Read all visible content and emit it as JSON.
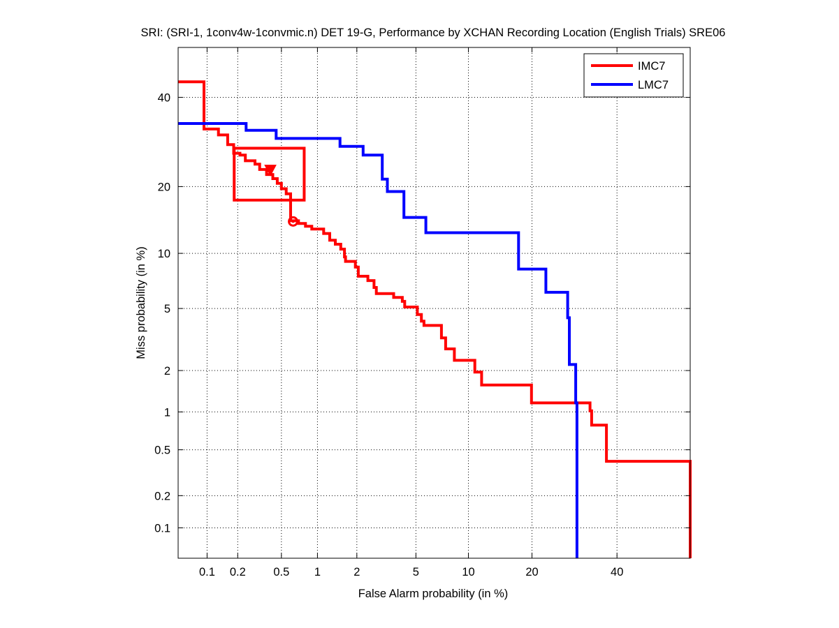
{
  "chart_data": {
    "type": "line",
    "title": "SRI: (SRI-1, 1conv4w-1convmic.n) DET 19-G,  Performance by XCHAN Recording Location (English Trials) SRE06",
    "xlabel": "False Alarm probability (in %)",
    "ylabel": "Miss probability (in %)",
    "scale": "normal-deviate (probit) on both axes",
    "xlim": [
      0.05,
      60
    ],
    "ylim": [
      0.05,
      53
    ],
    "x_ticks": [
      {
        "value": 0.1,
        "label": "0.1"
      },
      {
        "value": 0.2,
        "label": "0.2"
      },
      {
        "value": 0.5,
        "label": "0.5"
      },
      {
        "value": 1,
        "label": "1"
      },
      {
        "value": 2,
        "label": "2"
      },
      {
        "value": 5,
        "label": "5"
      },
      {
        "value": 10,
        "label": "10"
      },
      {
        "value": 20,
        "label": "20"
      },
      {
        "value": 40,
        "label": "40"
      }
    ],
    "y_ticks": [
      {
        "value": 0.1,
        "label": "0.1"
      },
      {
        "value": 0.2,
        "label": "0.2"
      },
      {
        "value": 0.5,
        "label": "0.5"
      },
      {
        "value": 1,
        "label": "1"
      },
      {
        "value": 2,
        "label": "2"
      },
      {
        "value": 5,
        "label": "5"
      },
      {
        "value": 10,
        "label": "10"
      },
      {
        "value": 20,
        "label": "20"
      },
      {
        "value": 40,
        "label": "40"
      }
    ],
    "grid": "dotted",
    "legend": "top-right",
    "series": [
      {
        "name": "IMC7",
        "color": "#ff0000",
        "points": [
          [
            0.05,
            44
          ],
          [
            0.093,
            44
          ],
          [
            0.093,
            32.2
          ],
          [
            0.13,
            32.2
          ],
          [
            0.13,
            30.8
          ],
          [
            0.16,
            30.8
          ],
          [
            0.16,
            28.6
          ],
          [
            0.183,
            28.6
          ],
          [
            0.183,
            26.7
          ],
          [
            0.21,
            26.7
          ],
          [
            0.21,
            26.3
          ],
          [
            0.236,
            26.3
          ],
          [
            0.236,
            25.1
          ],
          [
            0.29,
            25.1
          ],
          [
            0.29,
            24.4
          ],
          [
            0.32,
            24.4
          ],
          [
            0.32,
            23.3
          ],
          [
            0.37,
            23.3
          ],
          [
            0.37,
            22.3
          ],
          [
            0.42,
            22.3
          ],
          [
            0.42,
            21.5
          ],
          [
            0.46,
            21.5
          ],
          [
            0.46,
            20.6
          ],
          [
            0.5,
            20.6
          ],
          [
            0.5,
            19.6
          ],
          [
            0.55,
            19.6
          ],
          [
            0.55,
            18.7
          ],
          [
            0.6,
            18.7
          ],
          [
            0.6,
            14.3
          ],
          [
            0.7,
            14.3
          ],
          [
            0.7,
            13.9
          ],
          [
            0.8,
            13.9
          ],
          [
            0.8,
            13.5
          ],
          [
            0.9,
            13.5
          ],
          [
            0.9,
            13.1
          ],
          [
            1.12,
            13.1
          ],
          [
            1.12,
            12.5
          ],
          [
            1.25,
            12.5
          ],
          [
            1.25,
            11.6
          ],
          [
            1.38,
            11.6
          ],
          [
            1.38,
            11.1
          ],
          [
            1.52,
            11.1
          ],
          [
            1.52,
            10.5
          ],
          [
            1.62,
            10.5
          ],
          [
            1.62,
            9.6
          ],
          [
            1.65,
            9.6
          ],
          [
            1.65,
            9.1
          ],
          [
            1.95,
            9.1
          ],
          [
            1.95,
            8.5
          ],
          [
            2.05,
            8.5
          ],
          [
            2.05,
            7.6
          ],
          [
            2.4,
            7.6
          ],
          [
            2.4,
            7.2
          ],
          [
            2.65,
            7.2
          ],
          [
            2.65,
            6.6
          ],
          [
            2.75,
            6.6
          ],
          [
            2.75,
            6.1
          ],
          [
            3.6,
            6.1
          ],
          [
            3.6,
            5.8
          ],
          [
            4.1,
            5.8
          ],
          [
            4.1,
            5.5
          ],
          [
            4.25,
            5.5
          ],
          [
            4.25,
            5.1
          ],
          [
            5.1,
            5.1
          ],
          [
            5.1,
            4.6
          ],
          [
            5.4,
            4.6
          ],
          [
            5.4,
            4.2
          ],
          [
            5.6,
            4.2
          ],
          [
            5.6,
            3.95
          ],
          [
            7.1,
            3.95
          ],
          [
            7.1,
            3.3
          ],
          [
            7.5,
            3.3
          ],
          [
            7.5,
            2.8
          ],
          [
            8.4,
            2.8
          ],
          [
            8.4,
            2.35
          ],
          [
            10.8,
            2.35
          ],
          [
            10.8,
            1.95
          ],
          [
            11.7,
            1.95
          ],
          [
            11.7,
            1.58
          ],
          [
            19.9,
            1.58
          ],
          [
            19.9,
            1.17
          ],
          [
            33,
            1.17
          ],
          [
            33,
            1.02
          ],
          [
            33.4,
            1.02
          ],
          [
            33.4,
            0.79
          ],
          [
            37.2,
            0.79
          ],
          [
            37.2,
            0.4
          ],
          [
            60,
            0.4
          ],
          [
            60,
            0.05
          ]
        ]
      },
      {
        "name": "LMC7",
        "color": "#0000ff",
        "points": [
          [
            0.05,
            33.5
          ],
          [
            0.24,
            33.5
          ],
          [
            0.24,
            31.9
          ],
          [
            0.45,
            31.9
          ],
          [
            0.45,
            30
          ],
          [
            1.5,
            30
          ],
          [
            1.5,
            28.2
          ],
          [
            2.22,
            28.2
          ],
          [
            2.22,
            26.3
          ],
          [
            3.02,
            26.3
          ],
          [
            3.02,
            21.4
          ],
          [
            3.27,
            21.4
          ],
          [
            3.27,
            19.1
          ],
          [
            4.2,
            19.1
          ],
          [
            4.2,
            14.8
          ],
          [
            5.75,
            14.8
          ],
          [
            5.75,
            12.6
          ],
          [
            17.5,
            12.6
          ],
          [
            17.5,
            8.3
          ],
          [
            22.8,
            8.3
          ],
          [
            22.8,
            6.2
          ],
          [
            27.6,
            6.2
          ],
          [
            27.6,
            4.4
          ],
          [
            28,
            4.4
          ],
          [
            28,
            2.2
          ],
          [
            29.5,
            2.2
          ],
          [
            29.5,
            1.17
          ],
          [
            29.8,
            1.17
          ],
          [
            29.8,
            0.05
          ]
        ]
      }
    ],
    "annotations": [
      {
        "type": "box",
        "x_range": [
          0.185,
          0.78
        ],
        "y_range": [
          17.6,
          27.8
        ],
        "color": "#ff0000"
      },
      {
        "type": "triangle-down-marker",
        "x": 0.4,
        "y": 23.2,
        "color": "#ff0000"
      },
      {
        "type": "circle-marker",
        "x": 0.63,
        "y": 14.2,
        "color": "#ff0000"
      }
    ]
  }
}
